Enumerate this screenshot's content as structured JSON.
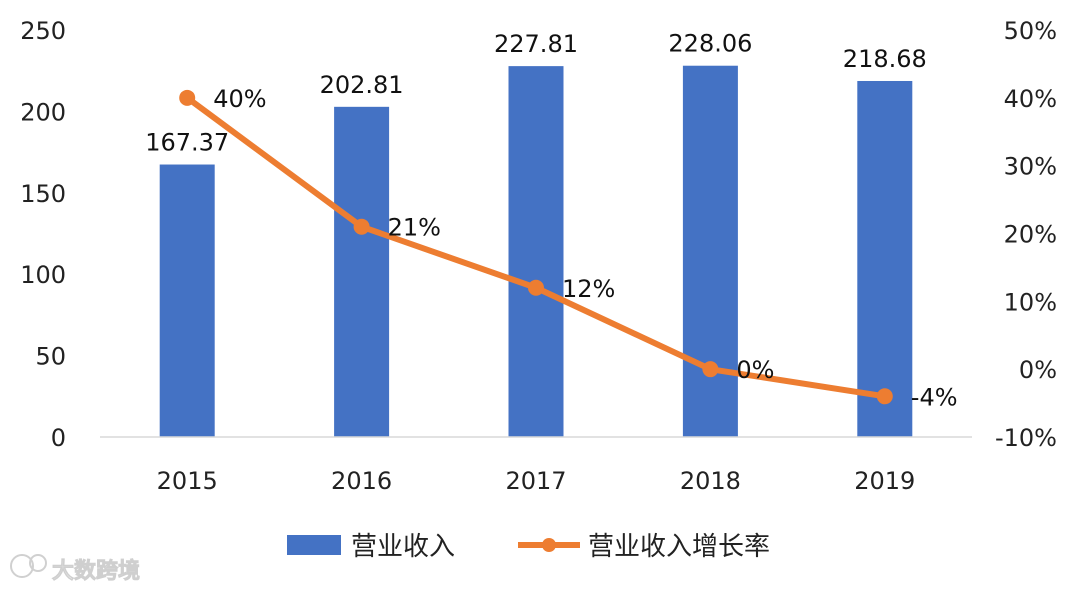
{
  "chart_data": {
    "type": "bar",
    "categories": [
      "2015",
      "2016",
      "2017",
      "2018",
      "2019"
    ],
    "series": [
      {
        "name": "营业收入",
        "type": "bar",
        "axis": "left",
        "values": [
          167.37,
          202.81,
          227.81,
          228.06,
          218.68
        ],
        "labels": [
          "167.37",
          "202.81",
          "227.81",
          "228.06",
          "218.68"
        ],
        "color": "#4472c4"
      },
      {
        "name": "营业收入增长率",
        "type": "line",
        "axis": "right",
        "values": [
          40,
          21,
          12,
          0,
          -4
        ],
        "labels": [
          "40%",
          "21%",
          "12%",
          "0%",
          "-4%"
        ],
        "color": "#ed7d31"
      }
    ],
    "y_left": {
      "range": [
        0,
        250
      ],
      "ticks": [
        "0",
        "50",
        "100",
        "150",
        "200",
        "250"
      ]
    },
    "y_right": {
      "range": [
        -10,
        50
      ],
      "ticks": [
        "-10%",
        "0%",
        "10%",
        "20%",
        "30%",
        "40%",
        "50%"
      ]
    },
    "grid": false,
    "legend": "bottom"
  },
  "watermark": {
    "text": "大数跨境"
  }
}
